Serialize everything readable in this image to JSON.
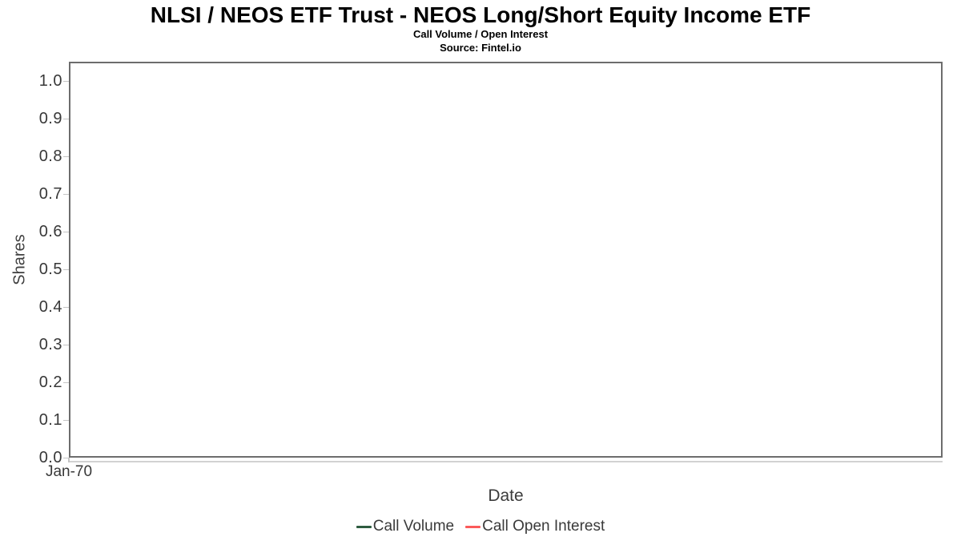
{
  "chart_data": {
    "type": "line",
    "title": "NLSI / NEOS ETF Trust - NEOS Long/Short Equity Income ETF",
    "subtitle": "Call Volume / Open Interest",
    "source": "Source: Fintel.io",
    "xlabel": "Date",
    "ylabel": "Shares",
    "x_tick_labels": [
      "Jan-70"
    ],
    "y_tick_values": [
      0.0,
      0.1,
      0.2,
      0.3,
      0.4,
      0.5,
      0.6,
      0.7,
      0.8,
      0.9,
      1.0
    ],
    "y_tick_labels": [
      "0.0",
      "0.1",
      "0.2",
      "0.3",
      "0.4",
      "0.5",
      "0.6",
      "0.7",
      "0.8",
      "0.9",
      "1.0"
    ],
    "ylim": [
      0,
      1.05
    ],
    "grid": "horizontal-only",
    "legend_position": "bottom-center",
    "series": [
      {
        "name": "Call Volume",
        "color": "#2E5C40",
        "points": []
      },
      {
        "name": "Call Open Interest",
        "color": "#FB5A5A",
        "points": []
      }
    ],
    "colors": {
      "plot_border": "#6d6d6d",
      "gridline": "#e7e7e7",
      "axis_line": "#d2d2d2",
      "tick": "#c4c4c4",
      "label_text": "#383838",
      "title_text": "#000000"
    }
  }
}
